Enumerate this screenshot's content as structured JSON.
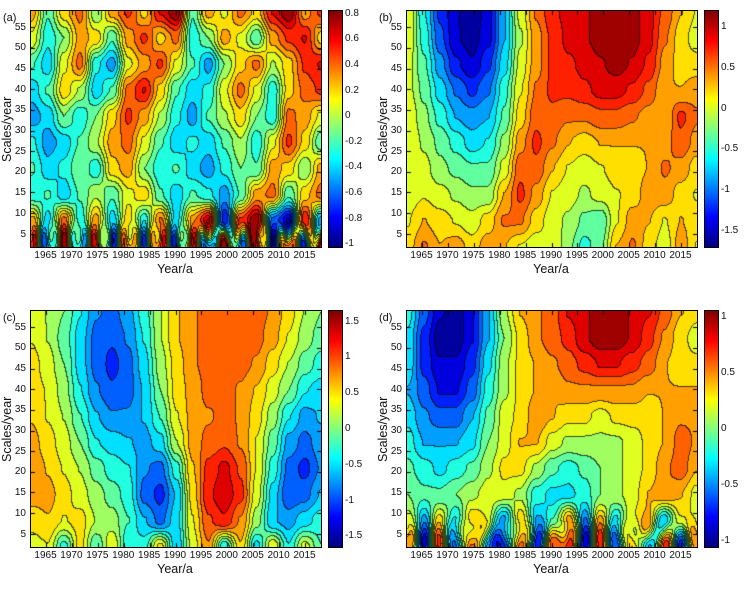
{
  "figure": {
    "background": "#ffffff",
    "colormap": "jet",
    "axis_color": "#000000"
  },
  "chart_data": [
    {
      "type": "heatmap",
      "panel_label": "(a)",
      "xlabel": "Year/a",
      "ylabel": "Scales/year",
      "x_range": [
        1962,
        2018
      ],
      "y_range": [
        2,
        59
      ],
      "x_ticks": [
        1965,
        1970,
        1975,
        1980,
        1985,
        1990,
        1995,
        2000,
        2005,
        2010,
        2015
      ],
      "y_ticks": [
        5,
        10,
        15,
        20,
        25,
        30,
        35,
        40,
        45,
        50,
        55
      ],
      "crange": [
        -1.02,
        0.82
      ],
      "colorbar_tick_labels": [
        "0.8",
        "0.6",
        "0.4",
        "0.2",
        "0",
        "-0.2",
        "-0.4",
        "-0.6",
        "-0.8",
        "-1"
      ],
      "colorbar_tick_values": [
        0.8,
        0.6,
        0.4,
        0.2,
        0,
        -0.2,
        -0.4,
        -0.6,
        -0.8,
        -1
      ],
      "grid_years": [
        1962,
        1965,
        1968,
        1971,
        1974,
        1977,
        1980,
        1983,
        1986,
        1989,
        1992,
        1995,
        1998,
        2001,
        2004,
        2007,
        2010,
        2013,
        2016
      ],
      "grid_scales": [
        57,
        51,
        45,
        39,
        33,
        27,
        21,
        15,
        9,
        3
      ],
      "values": [
        [
          0.3,
          -0.2,
          0.2,
          0.4,
          -0.1,
          0.3,
          0.5,
          0.2,
          0.6,
          0.8,
          -0.2,
          0.3,
          0.1,
          0.4,
          0.2,
          0.6,
          0.8,
          0.3,
          0.5
        ],
        [
          0.1,
          -0.3,
          -0.1,
          0.3,
          0.2,
          -0.2,
          0.3,
          0.5,
          0.2,
          0.4,
          -0.3,
          -0.1,
          0.3,
          0.1,
          -0.2,
          0.3,
          0.5,
          0.6,
          0.2
        ],
        [
          -0.2,
          -0.4,
          0.1,
          0.4,
          -0.3,
          -0.5,
          0.1,
          0.3,
          0.5,
          0.1,
          -0.2,
          -0.5,
          -0.1,
          0.2,
          0.4,
          0.0,
          0.2,
          0.5,
          0.6
        ],
        [
          -0.4,
          -0.2,
          0.2,
          0.0,
          -0.4,
          -0.2,
          0.4,
          0.6,
          0.2,
          -0.2,
          -0.4,
          -0.3,
          0.1,
          0.4,
          0.1,
          -0.3,
          0.2,
          0.4,
          0.5
        ],
        [
          -0.5,
          -0.4,
          -0.1,
          -0.3,
          -0.1,
          0.2,
          0.5,
          0.3,
          0.0,
          -0.3,
          -0.5,
          -0.2,
          0.0,
          0.2,
          -0.1,
          -0.3,
          0.4,
          0.3,
          0.1
        ],
        [
          -0.3,
          -0.5,
          -0.4,
          -0.2,
          0.0,
          0.3,
          0.4,
          0.1,
          -0.2,
          -0.4,
          -0.3,
          -0.4,
          -0.2,
          0.0,
          -0.3,
          0.1,
          0.5,
          0.2,
          -0.2
        ],
        [
          -0.2,
          -0.4,
          -0.3,
          -0.1,
          -0.3,
          0.2,
          0.3,
          -0.1,
          -0.3,
          -0.2,
          -0.4,
          -0.5,
          -0.3,
          -0.1,
          -0.2,
          0.3,
          0.2,
          -0.1,
          0.3
        ],
        [
          -0.3,
          -0.2,
          -0.4,
          -0.2,
          0.0,
          -0.2,
          0.1,
          0.2,
          -0.2,
          -0.4,
          -0.2,
          -0.3,
          -0.5,
          -0.2,
          0.3,
          0.4,
          -0.2,
          0.2,
          0.4
        ],
        [
          0.3,
          -0.4,
          0.4,
          -0.3,
          0.3,
          -0.4,
          0.2,
          -0.3,
          0.4,
          -0.4,
          0.3,
          0.7,
          -0.8,
          0.5,
          0.8,
          -0.6,
          -0.9,
          0.6,
          -0.5
        ],
        [
          0.5,
          -0.6,
          0.6,
          -0.5,
          0.5,
          -0.6,
          0.5,
          -0.5,
          0.6,
          -0.6,
          0.5,
          -0.7,
          0.7,
          -0.6,
          0.7,
          -0.7,
          0.6,
          -0.6,
          0.7
        ]
      ],
      "bottom_oscillation": {
        "amp": 0.3,
        "period": 2.8,
        "center_scale": 4,
        "scale_width": 3
      }
    },
    {
      "type": "heatmap",
      "panel_label": "(b)",
      "xlabel": "Year/a",
      "ylabel": "Scales/year",
      "x_range": [
        1962,
        2018
      ],
      "y_range": [
        2,
        59
      ],
      "x_ticks": [
        1965,
        1970,
        1975,
        1980,
        1985,
        1990,
        1995,
        2000,
        2005,
        2010,
        2015
      ],
      "y_ticks": [
        5,
        10,
        15,
        20,
        25,
        30,
        35,
        40,
        45,
        50,
        55
      ],
      "crange": [
        -1.7,
        1.2
      ],
      "colorbar_tick_labels": [
        "1",
        "0.5",
        "0",
        "-0.5",
        "-1",
        "-1.5"
      ],
      "colorbar_tick_values": [
        1,
        0.5,
        0,
        -0.5,
        -1,
        -1.5
      ],
      "grid_years": [
        1962,
        1965,
        1968,
        1971,
        1974,
        1977,
        1980,
        1983,
        1986,
        1989,
        1992,
        1995,
        1998,
        2001,
        2004,
        2007,
        2010,
        2013,
        2016
      ],
      "grid_scales": [
        57,
        51,
        45,
        39,
        33,
        27,
        21,
        15,
        9,
        3
      ],
      "values": [
        [
          0.1,
          -0.6,
          -1.2,
          -1.5,
          -1.7,
          -1.4,
          -0.8,
          0.0,
          0.5,
          0.8,
          0.9,
          1.0,
          1.1,
          1.2,
          1.1,
          0.9,
          0.6,
          0.3,
          0.1
        ],
        [
          0.1,
          -0.5,
          -1.1,
          -1.5,
          -1.6,
          -1.4,
          -0.8,
          -0.1,
          0.4,
          0.7,
          0.9,
          1.0,
          1.1,
          1.2,
          1.1,
          0.9,
          0.5,
          0.2,
          0.0
        ],
        [
          0.0,
          -0.4,
          -0.9,
          -1.3,
          -1.5,
          -1.2,
          -0.7,
          0.0,
          0.4,
          0.7,
          0.8,
          0.9,
          1.0,
          1.1,
          1.0,
          0.8,
          0.4,
          0.2,
          0.2
        ],
        [
          0.0,
          -0.3,
          -0.7,
          -1.0,
          -1.2,
          -1.0,
          -0.5,
          0.1,
          0.5,
          0.7,
          0.7,
          0.8,
          0.9,
          0.9,
          0.8,
          0.6,
          0.3,
          0.3,
          0.4
        ],
        [
          0.1,
          -0.2,
          -0.5,
          -0.8,
          -0.9,
          -0.8,
          -0.4,
          0.2,
          0.6,
          0.6,
          0.5,
          0.5,
          0.6,
          0.6,
          0.5,
          0.4,
          0.3,
          0.7,
          0.5
        ],
        [
          0.1,
          -0.1,
          -0.3,
          -0.5,
          -0.7,
          -0.6,
          -0.2,
          0.4,
          0.7,
          0.5,
          0.3,
          0.2,
          0.3,
          0.3,
          0.3,
          0.3,
          0.4,
          0.6,
          0.4
        ],
        [
          0.0,
          0.0,
          -0.2,
          -0.3,
          -0.4,
          -0.4,
          0.0,
          0.6,
          0.6,
          0.3,
          0.1,
          0.0,
          0.1,
          0.2,
          0.2,
          0.3,
          0.5,
          0.4,
          0.2
        ],
        [
          0.0,
          0.1,
          0.0,
          -0.1,
          -0.2,
          -0.2,
          0.3,
          0.7,
          0.4,
          0.1,
          0.0,
          -0.1,
          0.0,
          0.1,
          0.2,
          0.4,
          0.4,
          0.2,
          0.1
        ],
        [
          0.1,
          0.3,
          0.2,
          0.1,
          0.0,
          0.2,
          0.5,
          0.5,
          0.2,
          0.0,
          -0.1,
          -0.3,
          -0.4,
          0.1,
          0.4,
          0.3,
          0.1,
          0.3,
          0.2
        ],
        [
          0.2,
          0.5,
          0.3,
          0.4,
          0.2,
          0.4,
          0.3,
          0.1,
          0.0,
          0.1,
          -0.2,
          -0.5,
          -0.3,
          0.3,
          0.5,
          0.2,
          0.0,
          0.4,
          0.1
        ]
      ],
      "bottom_oscillation": null
    },
    {
      "type": "heatmap",
      "panel_label": "(c)",
      "xlabel": "Year/a",
      "ylabel": "Scales/year",
      "x_range": [
        1962,
        2018
      ],
      "y_range": [
        2,
        59
      ],
      "x_ticks": [
        1965,
        1970,
        1975,
        1980,
        1985,
        1990,
        1995,
        2000,
        2005,
        2010,
        2015
      ],
      "y_ticks": [
        5,
        10,
        15,
        20,
        25,
        30,
        35,
        40,
        45,
        50,
        55
      ],
      "crange": [
        -1.65,
        1.65
      ],
      "colorbar_tick_labels": [
        "1.5",
        "1",
        "0.5",
        "0",
        "-0.5",
        "-1",
        "-1.5"
      ],
      "colorbar_tick_values": [
        1.5,
        1,
        0.5,
        0,
        -0.5,
        -1,
        -1.5
      ],
      "grid_years": [
        1962,
        1965,
        1968,
        1971,
        1974,
        1977,
        1980,
        1983,
        1986,
        1989,
        1992,
        1995,
        1998,
        2001,
        2004,
        2007,
        2010,
        2013,
        2016
      ],
      "grid_scales": [
        57,
        51,
        45,
        39,
        33,
        27,
        21,
        15,
        9,
        3
      ],
      "values": [
        [
          0.3,
          0.2,
          0.0,
          -0.4,
          -0.8,
          -0.9,
          -0.7,
          -0.3,
          0.2,
          0.6,
          0.8,
          0.9,
          1.0,
          1.0,
          0.9,
          0.8,
          0.5,
          0.2,
          0.0
        ],
        [
          0.4,
          0.2,
          -0.1,
          -0.5,
          -0.9,
          -1.0,
          -0.8,
          -0.4,
          0.2,
          0.6,
          0.8,
          0.9,
          1.0,
          1.0,
          0.9,
          0.7,
          0.4,
          0.1,
          -0.1
        ],
        [
          0.5,
          0.3,
          0.0,
          -0.5,
          -0.9,
          -1.1,
          -0.9,
          -0.5,
          0.1,
          0.5,
          0.8,
          0.9,
          1.0,
          0.9,
          0.8,
          0.5,
          0.2,
          -0.1,
          -0.3
        ],
        [
          0.5,
          0.4,
          0.1,
          -0.4,
          -0.8,
          -1.0,
          -0.9,
          -0.6,
          0.0,
          0.5,
          0.7,
          0.9,
          0.9,
          0.8,
          0.6,
          0.3,
          0.0,
          -0.4,
          -0.5
        ],
        [
          0.6,
          0.4,
          0.2,
          -0.2,
          -0.6,
          -0.8,
          -0.8,
          -0.6,
          -0.2,
          0.4,
          0.7,
          0.8,
          0.9,
          0.8,
          0.5,
          0.1,
          -0.4,
          -0.7,
          -0.6
        ],
        [
          0.7,
          0.5,
          0.3,
          0.0,
          -0.4,
          -0.5,
          -0.6,
          -0.7,
          -0.5,
          0.2,
          0.7,
          0.9,
          1.0,
          0.8,
          0.4,
          -0.1,
          -0.7,
          -0.9,
          -0.7
        ],
        [
          0.8,
          0.6,
          0.4,
          0.2,
          -0.1,
          -0.3,
          -0.4,
          -0.8,
          -0.9,
          -0.3,
          0.6,
          1.1,
          1.3,
          1.0,
          0.4,
          -0.3,
          -0.9,
          -1.1,
          -0.8
        ],
        [
          0.7,
          0.7,
          0.5,
          0.3,
          0.1,
          -0.1,
          -0.3,
          -0.9,
          -1.1,
          -0.6,
          0.5,
          1.2,
          1.4,
          1.1,
          0.3,
          -0.5,
          -1.0,
          -0.9,
          -0.6
        ],
        [
          0.5,
          0.6,
          0.4,
          0.5,
          0.2,
          0.1,
          -0.2,
          -0.6,
          -0.9,
          -0.5,
          0.4,
          1.0,
          1.2,
          0.8,
          0.1,
          -0.6,
          -0.7,
          -0.5,
          -0.3
        ],
        [
          0.3,
          0.4,
          -0.3,
          0.5,
          -0.2,
          0.4,
          -0.4,
          -0.3,
          0.5,
          -0.6,
          0.3,
          0.8,
          -0.4,
          0.6,
          -0.5,
          0.4,
          -0.4,
          0.3,
          -0.2
        ]
      ],
      "bottom_oscillation": null
    },
    {
      "type": "heatmap",
      "panel_label": "(d)",
      "xlabel": "Year/a",
      "ylabel": "Scales/year",
      "x_range": [
        1962,
        2018
      ],
      "y_range": [
        2,
        59
      ],
      "x_ticks": [
        1965,
        1970,
        1975,
        1980,
        1985,
        1990,
        1995,
        2000,
        2005,
        2010,
        2015
      ],
      "y_ticks": [
        5,
        10,
        15,
        20,
        25,
        30,
        35,
        40,
        45,
        50,
        55
      ],
      "crange": [
        -1.05,
        1.05
      ],
      "colorbar_tick_labels": [
        "1",
        "0.5",
        "0",
        "-0.5",
        "-1"
      ],
      "colorbar_tick_values": [
        1,
        0.5,
        0,
        -0.5,
        -1
      ],
      "grid_years": [
        1962,
        1965,
        1968,
        1971,
        1974,
        1977,
        1980,
        1983,
        1986,
        1989,
        1992,
        1995,
        1998,
        2001,
        2004,
        2007,
        2010,
        2013,
        2016
      ],
      "grid_scales": [
        57,
        51,
        45,
        39,
        33,
        27,
        21,
        15,
        9,
        3
      ],
      "values": [
        [
          -0.2,
          -0.6,
          -0.9,
          -1.0,
          -0.8,
          -0.4,
          0.1,
          0.4,
          0.5,
          0.6,
          0.8,
          0.9,
          1.0,
          1.0,
          0.9,
          0.8,
          0.6,
          0.4,
          0.3
        ],
        [
          -0.3,
          -0.7,
          -1.0,
          -1.0,
          -0.8,
          -0.4,
          0.0,
          0.3,
          0.5,
          0.6,
          0.7,
          0.9,
          1.0,
          1.0,
          0.9,
          0.7,
          0.5,
          0.3,
          0.2
        ],
        [
          -0.3,
          -0.7,
          -0.9,
          -0.9,
          -0.7,
          -0.3,
          0.1,
          0.3,
          0.4,
          0.5,
          0.6,
          0.7,
          0.8,
          0.8,
          0.7,
          0.6,
          0.4,
          0.3,
          0.3
        ],
        [
          -0.4,
          -0.6,
          -0.8,
          -0.8,
          -0.6,
          -0.2,
          0.1,
          0.3,
          0.4,
          0.4,
          0.5,
          0.5,
          0.5,
          0.5,
          0.5,
          0.4,
          0.4,
          0.4,
          0.4
        ],
        [
          -0.3,
          -0.5,
          -0.6,
          -0.6,
          -0.4,
          -0.1,
          0.2,
          0.3,
          0.5,
          0.4,
          0.3,
          0.3,
          0.2,
          0.3,
          0.3,
          0.3,
          0.4,
          0.5,
          0.5
        ],
        [
          -0.2,
          -0.4,
          -0.4,
          -0.4,
          -0.3,
          0.0,
          0.2,
          0.4,
          0.4,
          0.2,
          0.1,
          0.1,
          0.1,
          0.1,
          0.2,
          0.3,
          0.4,
          0.6,
          0.5
        ],
        [
          -0.1,
          -0.2,
          -0.3,
          -0.2,
          -0.1,
          0.1,
          0.3,
          0.3,
          0.1,
          -0.1,
          -0.2,
          -0.1,
          0.0,
          0.1,
          0.2,
          0.3,
          0.5,
          0.6,
          0.4
        ],
        [
          0.0,
          -0.1,
          -0.1,
          0.0,
          0.1,
          0.2,
          0.2,
          0.1,
          -0.2,
          -0.3,
          -0.3,
          -0.2,
          0.0,
          0.1,
          0.2,
          0.4,
          0.5,
          0.4,
          0.2
        ],
        [
          0.2,
          -0.4,
          0.3,
          -0.3,
          0.4,
          0.2,
          -0.5,
          0.4,
          -0.4,
          -0.2,
          0.5,
          -0.5,
          0.4,
          -0.3,
          0.3,
          0.4,
          -0.4,
          0.3,
          0.2
        ],
        [
          0.5,
          -0.7,
          0.6,
          -0.6,
          0.7,
          -0.5,
          -0.8,
          0.7,
          -0.7,
          0.5,
          0.8,
          -0.8,
          0.6,
          -0.6,
          0.5,
          -0.5,
          0.7,
          -0.6,
          0.4
        ]
      ],
      "bottom_oscillation": {
        "amp": 0.25,
        "period": 4.5,
        "center_scale": 5,
        "scale_width": 3.5
      }
    }
  ]
}
